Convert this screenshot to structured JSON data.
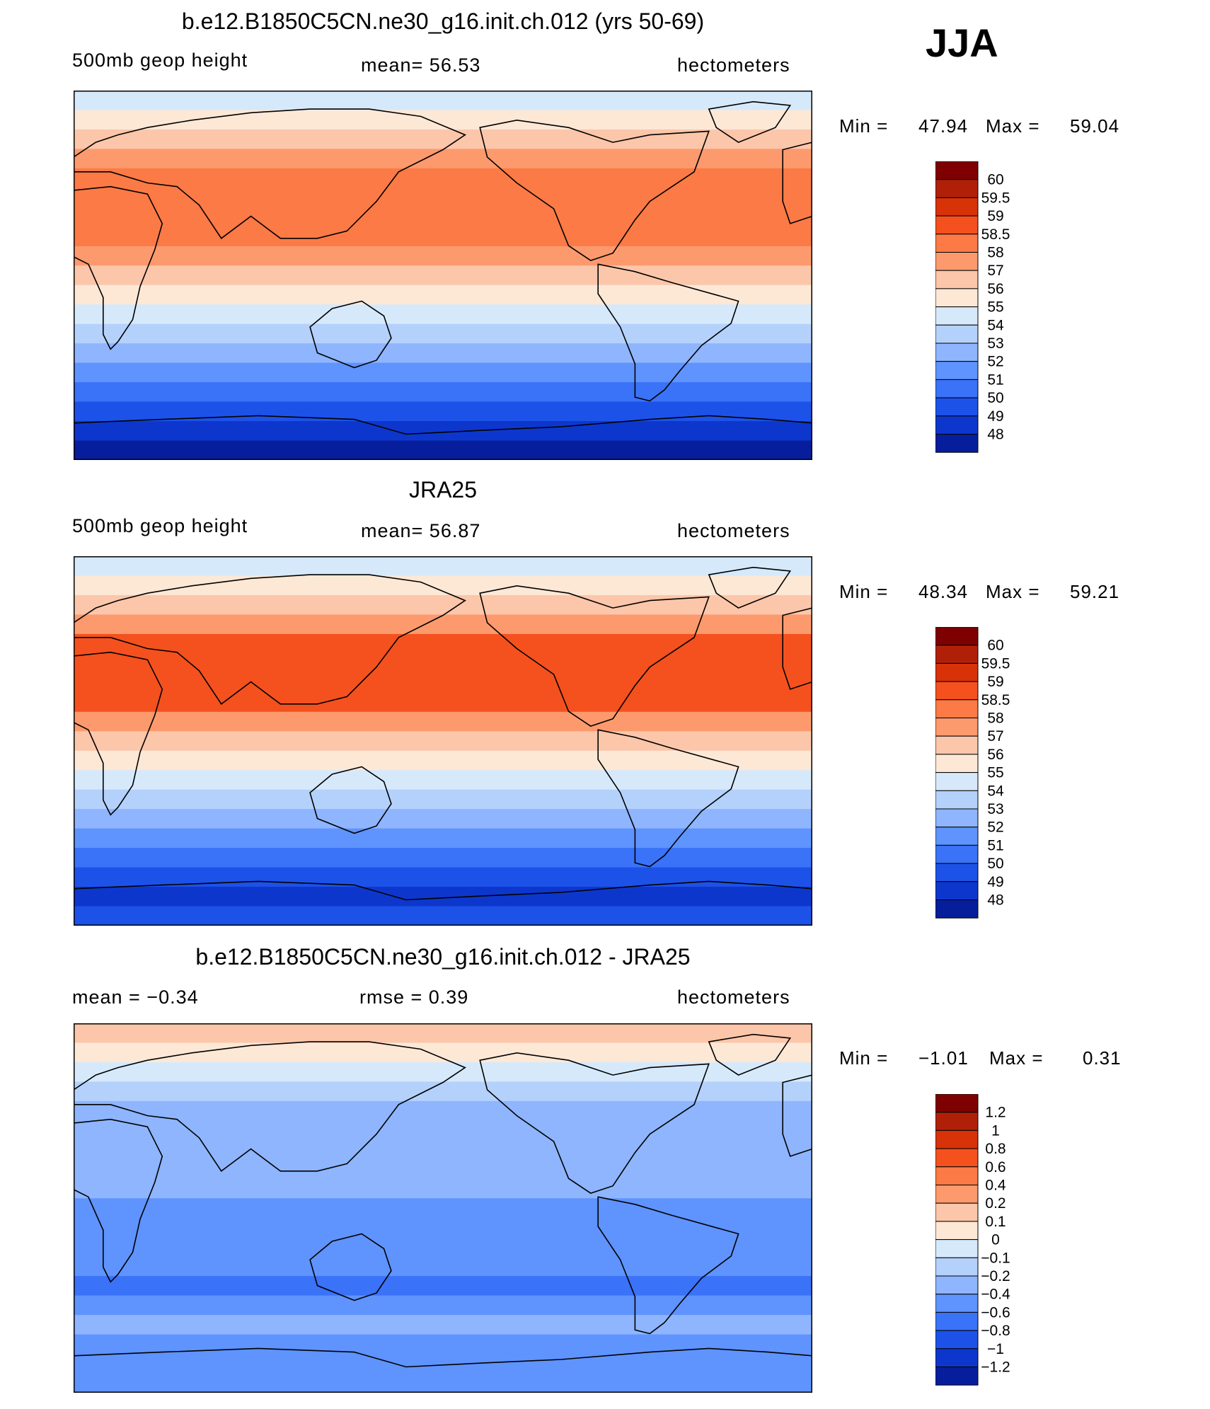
{
  "season": "JJA",
  "panels": [
    {
      "title": "b.e12.B1850C5CN.ne30_g16.init.ch.012 (yrs 50-69)",
      "left_label": "500mb  geop  height",
      "center_label": "mean=   56.53",
      "right_label": "hectometers",
      "min_label": "Min  =",
      "min_value": "47.94",
      "max_label": "Max  =",
      "max_value": "59.04",
      "colorbar": {
        "labels": [
          "60",
          "59.5",
          "59",
          "58.5",
          "58",
          "57",
          "56",
          "55",
          "54",
          "53",
          "52",
          "51",
          "50",
          "49",
          "48"
        ],
        "colors": [
          "#7f0000",
          "#b02008",
          "#d83208",
          "#f4511e",
          "#fb7a45",
          "#fc9a6e",
          "#fcc6aa",
          "#fde8d6",
          "#d6e9fb",
          "#b4d1fc",
          "#8eb5fd",
          "#5f93fd",
          "#3a72f8",
          "#1d52e8",
          "#0d37cc",
          "#061e9b"
        ]
      },
      "map_field": {
        "bands_top_to_bottom": [
          "#d6e9fb",
          "#fde8d6",
          "#fcc6aa",
          "#fc9a6e",
          "#fb7a45",
          "#fb7a45",
          "#fb7a45",
          "#fb7a45",
          "#fc9a6e",
          "#fcc6aa",
          "#fde8d6",
          "#d6e9fb",
          "#b4d1fc",
          "#8eb5fd",
          "#5f93fd",
          "#3a72f8",
          "#1d52e8",
          "#0d37cc",
          "#061e9b"
        ]
      }
    },
    {
      "title": "JRA25",
      "left_label": "500mb  geop  height",
      "center_label": "mean=   56.87",
      "right_label": "hectometers",
      "min_label": "Min  =",
      "min_value": "48.34",
      "max_label": "Max  =",
      "max_value": "59.21",
      "colorbar": {
        "labels": [
          "60",
          "59.5",
          "59",
          "58.5",
          "58",
          "57",
          "56",
          "55",
          "54",
          "53",
          "52",
          "51",
          "50",
          "49",
          "48"
        ],
        "colors": [
          "#7f0000",
          "#b02008",
          "#d83208",
          "#f4511e",
          "#fb7a45",
          "#fc9a6e",
          "#fcc6aa",
          "#fde8d6",
          "#d6e9fb",
          "#b4d1fc",
          "#8eb5fd",
          "#5f93fd",
          "#3a72f8",
          "#1d52e8",
          "#0d37cc",
          "#061e9b"
        ]
      },
      "map_field": {
        "bands_top_to_bottom": [
          "#d6e9fb",
          "#fde8d6",
          "#fcc6aa",
          "#fc9a6e",
          "#f4511e",
          "#f4511e",
          "#f4511e",
          "#f4511e",
          "#fc9a6e",
          "#fcc6aa",
          "#fde8d6",
          "#d6e9fb",
          "#b4d1fc",
          "#8eb5fd",
          "#5f93fd",
          "#3a72f8",
          "#1d52e8",
          "#0d37cc",
          "#1d52e8"
        ]
      }
    },
    {
      "title": "b.e12.B1850C5CN.ne30_g16.init.ch.012 - JRA25",
      "left_label": "mean  =     −0.34",
      "center_label": "rmse  =     0.39",
      "right_label": "hectometers",
      "min_label": "Min  =",
      "min_value": "−1.01",
      "max_label": "Max  =",
      "max_value": "0.31",
      "colorbar": {
        "labels": [
          "1.2",
          "1",
          "0.8",
          "0.6",
          "0.4",
          "0.2",
          "0.1",
          "0",
          "−0.1",
          "−0.2",
          "−0.4",
          "−0.6",
          "−0.8",
          "−1",
          "−1.2"
        ],
        "colors": [
          "#7f0000",
          "#b02008",
          "#d83208",
          "#f4511e",
          "#fb7a45",
          "#fc9a6e",
          "#fcc6aa",
          "#fde8d6",
          "#d6e9fb",
          "#b4d1fc",
          "#8eb5fd",
          "#5f93fd",
          "#3a72f8",
          "#1d52e8",
          "#0d37cc",
          "#061e9b"
        ]
      },
      "map_field": {
        "bands_top_to_bottom": [
          "#fcc6aa",
          "#fde8d6",
          "#d6e9fb",
          "#b4d1fc",
          "#8eb5fd",
          "#8eb5fd",
          "#8eb5fd",
          "#8eb5fd",
          "#8eb5fd",
          "#5f93fd",
          "#5f93fd",
          "#5f93fd",
          "#5f93fd",
          "#3a72f8",
          "#5f93fd",
          "#8eb5fd",
          "#5f93fd",
          "#5f93fd",
          "#5f93fd"
        ]
      }
    }
  ]
}
